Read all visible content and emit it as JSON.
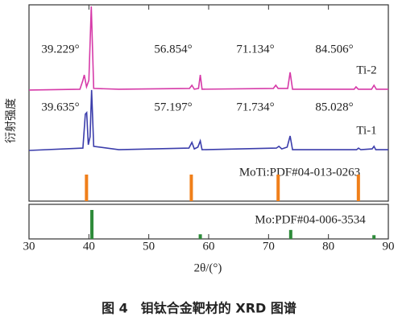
{
  "chart_data": {
    "type": "line",
    "x_label": "2θ/(°)",
    "y_label": "衍射强度",
    "caption": "图 4　钼钛合金靶材的 XRD 图谱",
    "xlim": [
      30,
      90
    ],
    "xticks": [
      30,
      40,
      50,
      60,
      70,
      80,
      90
    ],
    "ylim": [
      0,
      100
    ],
    "annotations": [
      "39.229°",
      "56.854°",
      "71.134°",
      "84.506°",
      "39.635°",
      "57.197°",
      "71.734°",
      "85.028°"
    ],
    "series": [
      {
        "name": "Ti-2",
        "color": "#d63aa8",
        "x": [
          30,
          38.5,
          39.0,
          39.229,
          39.6,
          40.0,
          40.4,
          40.8,
          45,
          56.8,
          57.2,
          57.6,
          58.3,
          58.6,
          58.9,
          70.8,
          71.2,
          71.6,
          73.2,
          73.6,
          74.0,
          84.3,
          84.6,
          85.0,
          87.2,
          87.6,
          88.0,
          90
        ],
        "values": [
          56.6,
          57,
          61.5,
          64.3,
          58.2,
          61.5,
          99.2,
          57.4,
          57,
          57.4,
          59,
          57,
          57.4,
          64.3,
          57,
          57.4,
          59,
          57.4,
          57.4,
          65.6,
          57,
          57,
          58.2,
          57,
          57,
          59,
          57,
          57
        ]
      },
      {
        "name": "Ti-1",
        "color": "#3b3dab",
        "x": [
          30,
          39.0,
          39.4,
          39.635,
          39.9,
          40.2,
          40.45,
          40.8,
          45,
          56.7,
          57.197,
          57.6,
          58.2,
          58.6,
          58.9,
          71.3,
          71.734,
          72.2,
          73.1,
          73.6,
          74.0,
          84.7,
          85.028,
          85.4,
          87.3,
          87.6,
          87.9,
          90
        ],
        "values": [
          25.8,
          27,
          44.3,
          45.1,
          28.7,
          32.8,
          56.6,
          27.9,
          26.2,
          27,
          29.9,
          26.6,
          27.5,
          30.7,
          26.2,
          27,
          27.9,
          26.6,
          27.5,
          33.2,
          26.2,
          26.2,
          27,
          26.2,
          26.6,
          27.9,
          26.2,
          26.2
        ]
      }
    ],
    "references": [
      {
        "name": "MoTi:PDF#04-013-0263",
        "color": "#f07f1a",
        "x": [
          39.6,
          57.1,
          71.6,
          85.0
        ],
        "values": [
          100,
          100,
          100,
          100
        ]
      },
      {
        "name": "Mo:PDF#04-006-3534",
        "color": "#2e8b3a",
        "x": [
          40.5,
          58.6,
          73.7,
          87.6
        ],
        "values": [
          100,
          16,
          31,
          13
        ]
      }
    ]
  }
}
